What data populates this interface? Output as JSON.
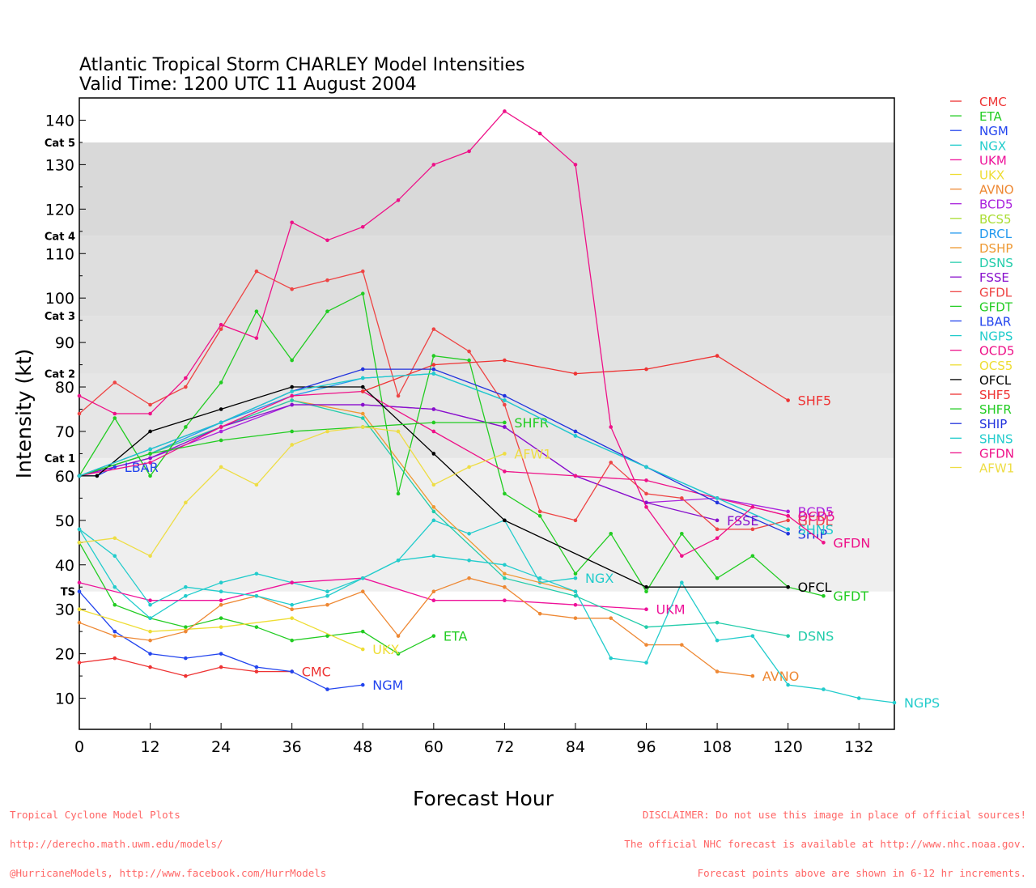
{
  "title_line1": "Atlantic Tropical Storm CHARLEY Model Intensities",
  "title_line2": "Valid Time: 1200 UTC 11 August 2004",
  "xlabel": "Forecast Hour",
  "footer_left": [
    "Tropical Cyclone Model Plots",
    "http://derecho.math.uwm.edu/models/",
    "@HurricaneModels, http://www.facebook.com/HurrModels"
  ],
  "footer_right": [
    "DISCLAIMER: Do not use this image in place of official sources!",
    "The official NHC forecast is available at http://www.nhc.noaa.gov.",
    "Forecast points above are shown in 6-12 hr increments."
  ],
  "chart_data": {
    "type": "line",
    "title": "Atlantic Tropical Storm CHARLEY Model Intensities",
    "subtitle": "Valid Time: 1200 UTC 11 August 2004",
    "xlabel": "Forecast Hour",
    "ylabel": "Intensity (kt)",
    "xlim": [
      0,
      138
    ],
    "ylim": [
      3,
      145
    ],
    "xticks": [
      0,
      12,
      24,
      36,
      48,
      60,
      72,
      84,
      96,
      108,
      120,
      132
    ],
    "yticks": [
      10,
      20,
      30,
      40,
      50,
      60,
      70,
      80,
      90,
      100,
      110,
      120,
      130,
      140
    ],
    "grid": false,
    "legend_position": "right-outside",
    "category_bands": [
      {
        "label": "TS",
        "from": 34,
        "to": 64,
        "color": "#efefef"
      },
      {
        "label": "Cat 1",
        "from": 64,
        "to": 83,
        "color": "#e6e6e6"
      },
      {
        "label": "Cat 2",
        "from": 83,
        "to": 96,
        "color": "#e2e2e2"
      },
      {
        "label": "Cat 3",
        "from": 96,
        "to": 114,
        "color": "#dedede"
      },
      {
        "label": "Cat 4",
        "from": 114,
        "to": 135,
        "color": "#d9d9d9"
      },
      {
        "label": "Cat 5",
        "from": 135,
        "to": 145,
        "color": "#ffffff"
      }
    ],
    "series": [
      {
        "name": "CMC",
        "color": "#ee3333",
        "x": [
          0,
          6,
          12,
          18,
          24,
          30,
          36
        ],
        "y": [
          18,
          19,
          17,
          15,
          17,
          16,
          16
        ],
        "end_label": "CMC"
      },
      {
        "name": "ETA",
        "color": "#22cc22",
        "x": [
          0,
          6,
          12,
          18,
          24,
          30,
          36,
          42,
          48,
          54,
          60
        ],
        "y": [
          45,
          31,
          28,
          26,
          28,
          26,
          23,
          24,
          25,
          20,
          24
        ],
        "end_label": "ETA"
      },
      {
        "name": "NGM",
        "color": "#2244ee",
        "x": [
          0,
          6,
          12,
          18,
          24,
          30,
          36,
          42,
          48
        ],
        "y": [
          34,
          25,
          20,
          19,
          20,
          17,
          16,
          12,
          13
        ],
        "end_label": "NGM"
      },
      {
        "name": "NGX",
        "color": "#22cccc",
        "x": [
          0,
          6,
          12,
          18,
          24,
          30,
          36,
          42,
          48,
          54,
          60,
          66,
          72,
          78,
          84
        ],
        "y": [
          48,
          35,
          28,
          33,
          36,
          38,
          36,
          34,
          37,
          41,
          50,
          47,
          50,
          36,
          37
        ],
        "end_label": "NGX"
      },
      {
        "name": "UKM",
        "color": "#ee1199",
        "x": [
          0,
          12,
          24,
          36,
          48,
          60,
          72,
          84,
          96
        ],
        "y": [
          36,
          32,
          32,
          36,
          37,
          32,
          32,
          31,
          30
        ],
        "end_label": "UKM"
      },
      {
        "name": "UKX",
        "color": "#eedd33",
        "x": [
          0,
          12,
          24,
          36,
          48
        ],
        "y": [
          30,
          25,
          26,
          28,
          21
        ],
        "end_label": "UKX"
      },
      {
        "name": "AVNO",
        "color": "#ee8833",
        "x": [
          0,
          6,
          12,
          18,
          24,
          30,
          36,
          42,
          48,
          54,
          60,
          66,
          72,
          78,
          84,
          90,
          96,
          102,
          108,
          114
        ],
        "y": [
          27,
          24,
          23,
          25,
          31,
          33,
          30,
          31,
          34,
          24,
          34,
          37,
          35,
          29,
          28,
          28,
          22,
          22,
          16,
          15
        ],
        "end_label": "AVNO"
      },
      {
        "name": "BCD5",
        "color": "#aa22dd",
        "x": [
          0,
          12,
          24,
          36,
          48,
          60,
          72,
          84,
          96,
          108,
          120
        ],
        "y": [
          60,
          64,
          70,
          76,
          76,
          75,
          71,
          60,
          54,
          55,
          52
        ],
        "end_label": "BCD5"
      },
      {
        "name": "BCS5",
        "color": "#aadd33",
        "x": [],
        "y": []
      },
      {
        "name": "DRCL",
        "color": "#2299ee",
        "x": [
          0,
          12,
          24,
          36,
          48,
          60,
          72,
          84,
          96,
          108,
          120
        ],
        "y": [
          60,
          65,
          72,
          78,
          82,
          83,
          77,
          69,
          62,
          55,
          48
        ]
      },
      {
        "name": "DSHP",
        "color": "#ee9933",
        "x": [
          0,
          12,
          24,
          36,
          48,
          60,
          72,
          84
        ],
        "y": [
          60,
          65,
          71,
          77,
          74,
          53,
          38,
          34
        ]
      },
      {
        "name": "DSNS",
        "color": "#22ccaa",
        "x": [
          0,
          12,
          24,
          36,
          48,
          60,
          72,
          84,
          96,
          108,
          120
        ],
        "y": [
          60,
          65,
          71,
          77,
          73,
          52,
          37,
          33,
          26,
          27,
          24
        ],
        "end_label": "DSNS"
      },
      {
        "name": "FSSE",
        "color": "#8811cc",
        "x": [
          0,
          12,
          24,
          36,
          48,
          60,
          72,
          84,
          96,
          108
        ],
        "y": [
          60,
          64,
          71,
          76,
          76,
          75,
          71,
          60,
          54,
          50
        ],
        "end_label": "FSSE"
      },
      {
        "name": "GFDL",
        "color": "#ee4444",
        "x": [
          0,
          6,
          12,
          18,
          24,
          30,
          36,
          42,
          48,
          54,
          60,
          66,
          72,
          78,
          84,
          90,
          96,
          102,
          108,
          114,
          120
        ],
        "y": [
          74,
          81,
          76,
          80,
          93,
          106,
          102,
          104,
          106,
          78,
          93,
          88,
          76,
          52,
          50,
          63,
          56,
          55,
          48,
          48,
          50
        ],
        "end_label": "GFDL"
      },
      {
        "name": "GFDT",
        "color": "#22cc22",
        "x": [
          0,
          6,
          12,
          18,
          24,
          30,
          36,
          42,
          48,
          54,
          60,
          66,
          72,
          78,
          84,
          90,
          96,
          102,
          108,
          114,
          120,
          126
        ],
        "y": [
          60,
          73,
          60,
          71,
          81,
          97,
          86,
          97,
          101,
          56,
          87,
          86,
          56,
          51,
          38,
          47,
          34,
          47,
          37,
          42,
          35,
          33
        ],
        "end_label": "GFDT"
      },
      {
        "name": "LBAR",
        "color": "#2244ee",
        "x": [
          0,
          3,
          6
        ],
        "y": [
          60,
          60,
          62
        ],
        "end_label": "LBAR"
      },
      {
        "name": "NGPS",
        "color": "#22cccc",
        "x": [
          0,
          6,
          12,
          18,
          24,
          30,
          36,
          42,
          48,
          54,
          60,
          66,
          72,
          78,
          84,
          90,
          96,
          102,
          108,
          114,
          120,
          126,
          132,
          138
        ],
        "y": [
          48,
          42,
          31,
          35,
          34,
          33,
          31,
          33,
          37,
          41,
          42,
          41,
          40,
          37,
          34,
          19,
          18,
          36,
          23,
          24,
          13,
          12,
          10,
          9
        ],
        "end_label": "NGPS"
      },
      {
        "name": "OCD5",
        "color": "#ee1188",
        "x": [
          0,
          12,
          24,
          36,
          48,
          60,
          72,
          84,
          96,
          108,
          120
        ],
        "y": [
          60,
          63,
          71,
          78,
          79,
          70,
          61,
          60,
          59,
          55,
          51
        ],
        "end_label": "OCD5"
      },
      {
        "name": "OCS5",
        "color": "#eedd33",
        "x": [],
        "y": []
      },
      {
        "name": "OFCL",
        "color": "#000000",
        "x": [
          0,
          3,
          12,
          24,
          36,
          48,
          60,
          72,
          96,
          120
        ],
        "y": [
          60,
          60,
          70,
          75,
          80,
          80,
          65,
          50,
          35,
          35
        ],
        "end_label": "OFCL"
      },
      {
        "name": "SHF5",
        "color": "#ee3333",
        "x": [
          48,
          60,
          72,
          84,
          96,
          108,
          120
        ],
        "y": [
          79,
          85,
          86,
          83,
          84,
          87,
          77
        ],
        "end_label": "SHF5"
      },
      {
        "name": "SHFR",
        "color": "#22cc22",
        "x": [
          0,
          12,
          24,
          36,
          48,
          60,
          72
        ],
        "y": [
          60,
          65,
          68,
          70,
          71,
          72,
          72
        ],
        "end_label": "SHFR"
      },
      {
        "name": "SHIP",
        "color": "#2233dd",
        "x": [
          0,
          12,
          24,
          36,
          48,
          60,
          72,
          84,
          96,
          108,
          120
        ],
        "y": [
          60,
          66,
          72,
          79,
          84,
          84,
          78,
          70,
          62,
          54,
          47
        ],
        "end_label": "SHIP"
      },
      {
        "name": "SHNS",
        "color": "#22cccc",
        "x": [
          0,
          12,
          24,
          36,
          48,
          60,
          72,
          84,
          96,
          108,
          120
        ],
        "y": [
          60,
          66,
          72,
          79,
          82,
          83,
          77,
          69,
          62,
          55,
          48
        ],
        "end_label": "SHNS"
      },
      {
        "name": "GFDN",
        "color": "#ee1188",
        "x": [
          0,
          6,
          12,
          18,
          24,
          30,
          36,
          42,
          48,
          54,
          60,
          66,
          72,
          78,
          84,
          90,
          96,
          102,
          108,
          114,
          120,
          126
        ],
        "y": [
          78,
          74,
          74,
          82,
          94,
          91,
          117,
          113,
          116,
          122,
          130,
          133,
          142,
          137,
          130,
          71,
          53,
          42,
          46,
          53,
          51,
          45
        ],
        "end_label": "GFDN"
      },
      {
        "name": "AFW1",
        "color": "#eedd44",
        "x": [
          0,
          6,
          12,
          18,
          24,
          30,
          36,
          42,
          48,
          54,
          60,
          66,
          72
        ],
        "y": [
          45,
          46,
          42,
          54,
          62,
          58,
          67,
          70,
          71,
          70,
          58,
          62,
          65
        ],
        "end_label": "AFW1"
      }
    ]
  }
}
